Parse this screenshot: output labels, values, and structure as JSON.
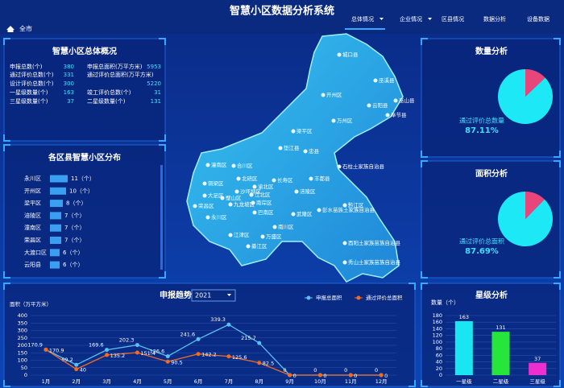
{
  "header": {
    "title": "智慧小区数据分析系统",
    "location": "全市",
    "nav": [
      "总体情况",
      "企业情况",
      "区县情况",
      "数据分析",
      "设备数据"
    ]
  },
  "overview": {
    "title": "智慧小区总体概况",
    "left": [
      {
        "label": "申报总数(个)",
        "value": 380
      },
      {
        "label": "通过评价总数(个)",
        "value": 331
      },
      {
        "label": "设计评价总数(个)",
        "value": 300
      },
      {
        "label": "一星级数量(个)",
        "value": 163
      },
      {
        "label": "三星级数量(个)",
        "value": 37
      }
    ],
    "right": [
      {
        "label": "申报总面积(万平方米)",
        "value": 5953
      },
      {
        "label": "通过评价总面积(万平方米)"
      },
      {
        "value": 5220
      },
      {
        "label": "竣工评价总数(个)",
        "value": 31
      },
      {
        "label": "二星级数量(个)",
        "value": 131
      }
    ]
  },
  "map": {
    "labels": [
      "城口县",
      "巫溪县",
      "开州区",
      "云阳县",
      "巫山县",
      "奉节县",
      "万州区",
      "梁平区",
      "垫江县",
      "忠县",
      "石柱土家族自治县",
      "丰都县",
      "潼南区",
      "合川区",
      "长寿区",
      "铜梁区",
      "北碚区",
      "渝北区",
      "涪陵区",
      "大足区",
      "璧山区",
      "沙坪坝区",
      "江北区",
      "荣昌区",
      "永川区",
      "九龙坡区",
      "南岸区",
      "巴南区",
      "武隆区",
      "彭水苗族土家族自治县",
      "黔江区",
      "江津区",
      "綦江区",
      "万盛区",
      "南川区",
      "酉阳土家族苗族自治县",
      "秀山土家族苗族自治县"
    ]
  },
  "chart_data": [
    {
      "type": "bar",
      "orientation": "horizontal",
      "title": "各区县智慧小区分布",
      "categories": [
        "永川区",
        "开州区",
        "梁平区",
        "涪陵区",
        "潼南区",
        "荣昌区",
        "大渡口区",
        "云阳县"
      ],
      "values": [
        11,
        10,
        8,
        7,
        7,
        7,
        6,
        6
      ],
      "value_labels": [
        "11（个）",
        "10（个）",
        "8（个）",
        "7（个）",
        "7（个）",
        "7（个）",
        "6（个）",
        "6（个）"
      ],
      "color": "#3a9ff0"
    },
    {
      "type": "pie",
      "title": "数量分析",
      "label": "通过评价总数量",
      "values": [
        87.11,
        12.89
      ],
      "value_labels": [
        "87.11%",
        null
      ],
      "colors": [
        "#1de9f6",
        "#e8457a"
      ]
    },
    {
      "type": "pie",
      "title": "面积分析",
      "label": "通过评价总面积",
      "values": [
        87.69,
        12.31
      ],
      "value_labels": [
        "87.69%",
        null
      ],
      "colors": [
        "#1de9f6",
        "#e8457a"
      ]
    },
    {
      "type": "line",
      "title": "申报趋势",
      "year": "2021",
      "ylabel": "面积（万平方米）",
      "categories": [
        "1月",
        "2月",
        "3月",
        "4月",
        "5月",
        "6月",
        "7月",
        "8月",
        "9月",
        "10月",
        "11月",
        "12月"
      ],
      "ylim": [
        0,
        400
      ],
      "yticks": [
        0,
        50,
        100,
        150,
        200,
        250,
        300,
        350,
        400
      ],
      "grid": true,
      "legend": "top-right",
      "series": [
        {
          "name": "申报总面积",
          "color": "#5bc0f0",
          "values": [
            170.9,
            69.2,
            169.6,
            202.3,
            126.6,
            241.6,
            339.3,
            215.7,
            0,
            0,
            0,
            0
          ]
        },
        {
          "name": "通过评价总面积",
          "color": "#f26b21",
          "values": [
            170.9,
            40,
            135.2,
            151.4,
            90.5,
            142.2,
            125.6,
            82.5,
            0,
            0,
            0,
            0
          ]
        }
      ]
    },
    {
      "type": "bar",
      "title": "星级分析",
      "ylabel": "数量（个）",
      "categories": [
        "一星级",
        "二星级",
        "三星级"
      ],
      "values": [
        163,
        131,
        37
      ],
      "colors": [
        "#19e6f0",
        "#26e63c",
        "#ee2fd0"
      ],
      "ylim": [
        0,
        180
      ],
      "yticks": [
        0,
        20,
        40,
        60,
        80,
        100,
        120,
        140,
        160,
        180
      ],
      "grid": true
    }
  ]
}
